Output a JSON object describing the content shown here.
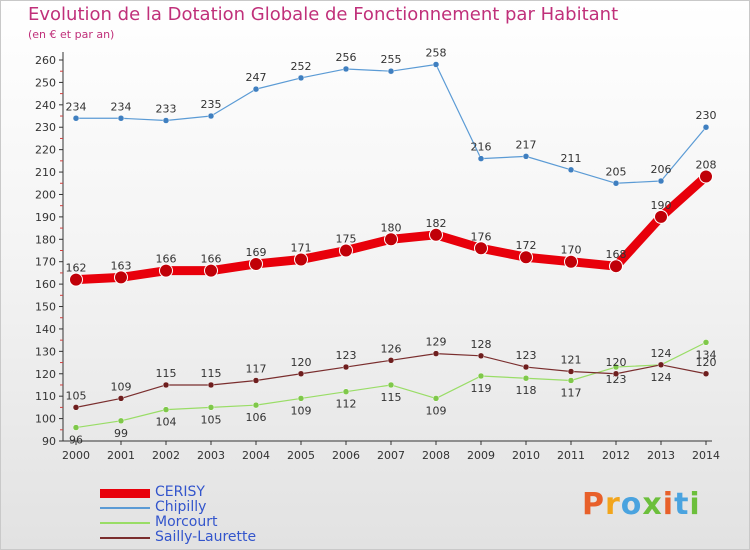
{
  "header": {
    "title": "Evolution de la Dotation Globale de Fonctionnement par Habitant",
    "subtitle": "(en € et par an)"
  },
  "brand": {
    "text": "Proxiti",
    "colors": [
      "#e8602a",
      "#f2a51c",
      "#4aa3df",
      "#6cbf3c",
      "#e8602a",
      "#4aa3df",
      "#6cbf3c"
    ]
  },
  "chart_data": {
    "type": "line",
    "x": [
      2000,
      2001,
      2002,
      2003,
      2004,
      2005,
      2006,
      2007,
      2008,
      2009,
      2010,
      2011,
      2012,
      2013,
      2014
    ],
    "ylim": [
      90,
      260
    ],
    "yticks": [
      90,
      100,
      110,
      120,
      130,
      140,
      150,
      160,
      170,
      180,
      190,
      200,
      210,
      220,
      230,
      240,
      250,
      260
    ],
    "grid": false,
    "legend_position": "bottom-left",
    "series": [
      {
        "name": "CERISY",
        "color": "#e8000b",
        "values": [
          162,
          163,
          166,
          166,
          169,
          171,
          175,
          180,
          182,
          176,
          172,
          170,
          168,
          190,
          208
        ]
      },
      {
        "name": "Chipilly",
        "color": "#5b9bd5",
        "values": [
          234,
          234,
          233,
          235,
          247,
          252,
          256,
          255,
          258,
          216,
          217,
          211,
          205,
          206,
          230
        ]
      },
      {
        "name": "Morcourt",
        "color": "#99dd66",
        "values": [
          96,
          99,
          104,
          105,
          106,
          109,
          112,
          115,
          109,
          119,
          118,
          117,
          123,
          124,
          134
        ]
      },
      {
        "name": "Sailly-Laurette",
        "color": "#7a2e2e",
        "values": [
          105,
          109,
          115,
          115,
          117,
          120,
          123,
          126,
          129,
          128,
          123,
          121,
          120,
          124,
          120
        ]
      }
    ]
  }
}
